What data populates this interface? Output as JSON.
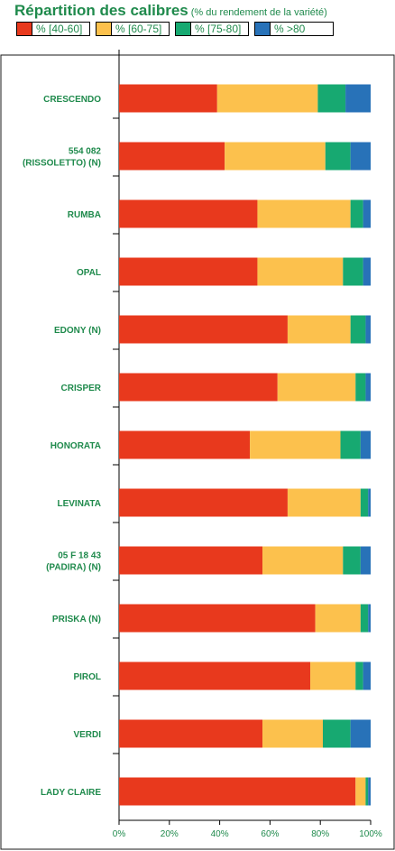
{
  "title": "Répartition des calibres",
  "subtitle": "(% du rendement de la variété)",
  "colors": {
    "accent_text": "#1f8a4c",
    "series": [
      "#e8391d",
      "#fcc14d",
      "#17a971",
      "#2872b8"
    ]
  },
  "legend": [
    "% [40-60]",
    "% [60-75]",
    "% [75-80]",
    "% >80"
  ],
  "chart_data": {
    "type": "bar",
    "orientation": "horizontal",
    "stacked": true,
    "title": "Répartition des calibres",
    "subtitle": "(% du rendement de la variété)",
    "categories": [
      [
        "CRESCENDO"
      ],
      [
        "554 082",
        "(RISSOLETTO) (N)"
      ],
      [
        "RUMBA"
      ],
      [
        "OPAL"
      ],
      [
        "EDONY (N)"
      ],
      [
        "CRISPER"
      ],
      [
        "HONORATA"
      ],
      [
        "LEVINATA"
      ],
      [
        "05 F 18 43",
        "(PADIRA) (N)"
      ],
      [
        "PRISKA (N)"
      ],
      [
        "PIROL"
      ],
      [
        "VERDI"
      ],
      [
        "LADY CLAIRE"
      ]
    ],
    "series": [
      {
        "name": "% [40-60]",
        "values": [
          39,
          42,
          55,
          55,
          67,
          63,
          52,
          67,
          57,
          78,
          76,
          57,
          94
        ]
      },
      {
        "name": "% [60-75]",
        "values": [
          40,
          40,
          37,
          34,
          25,
          31,
          36,
          29,
          32,
          18,
          18,
          24,
          4
        ]
      },
      {
        "name": "% [75-80]",
        "values": [
          11,
          10,
          5,
          8,
          6,
          4,
          8,
          3,
          7,
          3,
          3,
          11,
          1
        ]
      },
      {
        "name": "% >80",
        "values": [
          10,
          8,
          3,
          3,
          2,
          2,
          4,
          1,
          4,
          1,
          3,
          8,
          1
        ]
      }
    ],
    "x_ticks": [
      "0%",
      "20%",
      "40%",
      "60%",
      "80%",
      "100%"
    ],
    "xlim": [
      0,
      100
    ],
    "legend_position": "top",
    "grid": false
  }
}
